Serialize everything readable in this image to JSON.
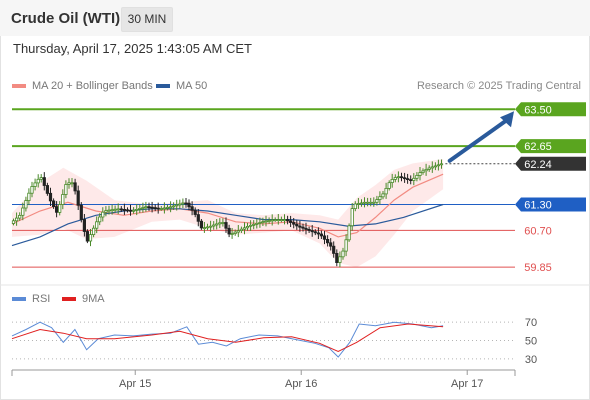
{
  "header": {
    "title": "Crude Oil (WTI)",
    "interval": "30 MIN"
  },
  "datetime": "Thursday, April 17, 2025 1:43:05 AM CET",
  "legend": {
    "bollinger": {
      "label": "MA 20 + Bollinger Bands",
      "color": "#f28b82"
    },
    "ma50": {
      "label": "MA 50",
      "color": "#2a5a9b"
    },
    "rsi": {
      "label": "RSI",
      "color": "#5b8bd6"
    },
    "ma9": {
      "label": "9MA",
      "color": "#e02020"
    }
  },
  "credit": "Research © 2025 Trading Central",
  "chart_data": {
    "type": "candlestick",
    "price_range": [
      59.6,
      63.9
    ],
    "levels": [
      {
        "value": 63.5,
        "label": "63.50",
        "kind": "target",
        "color": "#5aa51f"
      },
      {
        "value": 62.65,
        "label": "62.65",
        "kind": "resistance",
        "color": "#5aa51f"
      },
      {
        "value": 62.24,
        "label": "62.24",
        "kind": "last",
        "color": "#333333"
      },
      {
        "value": 61.3,
        "label": "61.30",
        "kind": "pivot",
        "color": "#1f5fc4"
      },
      {
        "value": 60.7,
        "label": "60.70",
        "kind": "support",
        "color": "#e05050"
      },
      {
        "value": 59.85,
        "label": "59.85",
        "kind": "support",
        "color": "#e05050"
      }
    ],
    "x_ticks": [
      {
        "label": "Apr 15",
        "t": 0.245
      },
      {
        "label": "Apr 16",
        "t": 0.575
      },
      {
        "label": "Apr 17",
        "t": 0.905
      }
    ],
    "price_path": [
      [
        0.0,
        60.86
      ],
      [
        0.02,
        61.05
      ],
      [
        0.045,
        61.7
      ],
      [
        0.065,
        61.95
      ],
      [
        0.085,
        61.4
      ],
      [
        0.1,
        61.1
      ],
      [
        0.12,
        61.8
      ],
      [
        0.135,
        61.8
      ],
      [
        0.155,
        60.8
      ],
      [
        0.165,
        60.45
      ],
      [
        0.185,
        60.9
      ],
      [
        0.2,
        61.15
      ],
      [
        0.23,
        61.2
      ],
      [
        0.26,
        61.15
      ],
      [
        0.29,
        61.25
      ],
      [
        0.32,
        61.2
      ],
      [
        0.345,
        61.25
      ],
      [
        0.375,
        61.35
      ],
      [
        0.395,
        61.1
      ],
      [
        0.41,
        60.75
      ],
      [
        0.43,
        60.8
      ],
      [
        0.455,
        60.9
      ],
      [
        0.47,
        60.6
      ],
      [
        0.49,
        60.7
      ],
      [
        0.51,
        60.8
      ],
      [
        0.54,
        60.9
      ],
      [
        0.565,
        60.95
      ],
      [
        0.59,
        60.95
      ],
      [
        0.615,
        60.8
      ],
      [
        0.64,
        60.7
      ],
      [
        0.665,
        60.6
      ],
      [
        0.69,
        60.3
      ],
      [
        0.7,
        59.95
      ],
      [
        0.715,
        60.25
      ],
      [
        0.725,
        60.7
      ],
      [
        0.735,
        61.3
      ],
      [
        0.76,
        61.35
      ],
      [
        0.78,
        61.35
      ],
      [
        0.8,
        61.55
      ],
      [
        0.815,
        61.85
      ],
      [
        0.83,
        61.95
      ],
      [
        0.845,
        61.9
      ],
      [
        0.86,
        61.85
      ],
      [
        0.88,
        62.05
      ],
      [
        0.9,
        62.15
      ],
      [
        0.925,
        62.24
      ]
    ],
    "ma20": [
      [
        0.0,
        60.85
      ],
      [
        0.06,
        61.15
      ],
      [
        0.12,
        61.35
      ],
      [
        0.18,
        61.15
      ],
      [
        0.24,
        61.05
      ],
      [
        0.3,
        61.15
      ],
      [
        0.36,
        61.2
      ],
      [
        0.42,
        61.1
      ],
      [
        0.48,
        60.9
      ],
      [
        0.54,
        60.85
      ],
      [
        0.6,
        60.9
      ],
      [
        0.66,
        60.75
      ],
      [
        0.7,
        60.55
      ],
      [
        0.74,
        60.65
      ],
      [
        0.78,
        61.0
      ],
      [
        0.82,
        61.4
      ],
      [
        0.86,
        61.7
      ],
      [
        0.925,
        62.0
      ]
    ],
    "ma50": [
      [
        0.0,
        60.35
      ],
      [
        0.06,
        60.55
      ],
      [
        0.12,
        60.85
      ],
      [
        0.18,
        61.05
      ],
      [
        0.24,
        61.15
      ],
      [
        0.3,
        61.2
      ],
      [
        0.36,
        61.2
      ],
      [
        0.42,
        61.15
      ],
      [
        0.48,
        61.05
      ],
      [
        0.54,
        60.95
      ],
      [
        0.6,
        60.95
      ],
      [
        0.66,
        60.9
      ],
      [
        0.72,
        60.8
      ],
      [
        0.78,
        60.85
      ],
      [
        0.84,
        61.0
      ],
      [
        0.925,
        61.3
      ]
    ],
    "bb_upper": [
      [
        0.0,
        61.1
      ],
      [
        0.06,
        61.8
      ],
      [
        0.11,
        62.15
      ],
      [
        0.16,
        61.85
      ],
      [
        0.22,
        61.4
      ],
      [
        0.3,
        61.3
      ],
      [
        0.36,
        61.35
      ],
      [
        0.42,
        61.4
      ],
      [
        0.48,
        61.1
      ],
      [
        0.54,
        61.05
      ],
      [
        0.6,
        61.1
      ],
      [
        0.66,
        61.05
      ],
      [
        0.7,
        60.95
      ],
      [
        0.74,
        61.45
      ],
      [
        0.78,
        61.75
      ],
      [
        0.82,
        62.1
      ],
      [
        0.86,
        62.25
      ],
      [
        0.925,
        62.35
      ]
    ],
    "bb_lower": [
      [
        0.0,
        60.55
      ],
      [
        0.06,
        60.6
      ],
      [
        0.11,
        60.75
      ],
      [
        0.16,
        60.5
      ],
      [
        0.22,
        60.55
      ],
      [
        0.3,
        60.9
      ],
      [
        0.36,
        60.95
      ],
      [
        0.42,
        60.75
      ],
      [
        0.48,
        60.6
      ],
      [
        0.54,
        60.65
      ],
      [
        0.6,
        60.7
      ],
      [
        0.66,
        60.4
      ],
      [
        0.7,
        59.95
      ],
      [
        0.74,
        59.85
      ],
      [
        0.78,
        60.1
      ],
      [
        0.82,
        60.6
      ],
      [
        0.86,
        61.15
      ],
      [
        0.925,
        61.65
      ]
    ],
    "forecast_arrow": {
      "from": [
        0.935,
        62.24
      ],
      "to": [
        1.0,
        63.5
      ]
    },
    "rsi": {
      "ticks": [
        70,
        50,
        30
      ],
      "range": [
        20,
        80
      ],
      "values": [
        [
          0.0,
          55
        ],
        [
          0.03,
          62
        ],
        [
          0.06,
          70
        ],
        [
          0.085,
          64
        ],
        [
          0.11,
          48
        ],
        [
          0.135,
          62
        ],
        [
          0.16,
          40
        ],
        [
          0.185,
          52
        ],
        [
          0.22,
          56
        ],
        [
          0.26,
          55
        ],
        [
          0.3,
          57
        ],
        [
          0.34,
          58
        ],
        [
          0.375,
          65
        ],
        [
          0.4,
          46
        ],
        [
          0.43,
          48
        ],
        [
          0.46,
          44
        ],
        [
          0.49,
          52
        ],
        [
          0.53,
          56
        ],
        [
          0.57,
          55
        ],
        [
          0.61,
          51
        ],
        [
          0.65,
          47
        ],
        [
          0.68,
          42
        ],
        [
          0.7,
          32
        ],
        [
          0.725,
          48
        ],
        [
          0.745,
          68
        ],
        [
          0.78,
          66
        ],
        [
          0.82,
          70
        ],
        [
          0.86,
          68
        ],
        [
          0.9,
          64
        ],
        [
          0.925,
          66
        ]
      ],
      "ma9": [
        [
          0.0,
          52
        ],
        [
          0.06,
          62
        ],
        [
          0.11,
          58
        ],
        [
          0.16,
          52
        ],
        [
          0.22,
          52
        ],
        [
          0.3,
          56
        ],
        [
          0.36,
          60
        ],
        [
          0.42,
          52
        ],
        [
          0.48,
          48
        ],
        [
          0.54,
          53
        ],
        [
          0.6,
          54
        ],
        [
          0.66,
          47
        ],
        [
          0.7,
          38
        ],
        [
          0.74,
          48
        ],
        [
          0.79,
          64
        ],
        [
          0.85,
          68
        ],
        [
          0.925,
          65
        ]
      ]
    }
  }
}
